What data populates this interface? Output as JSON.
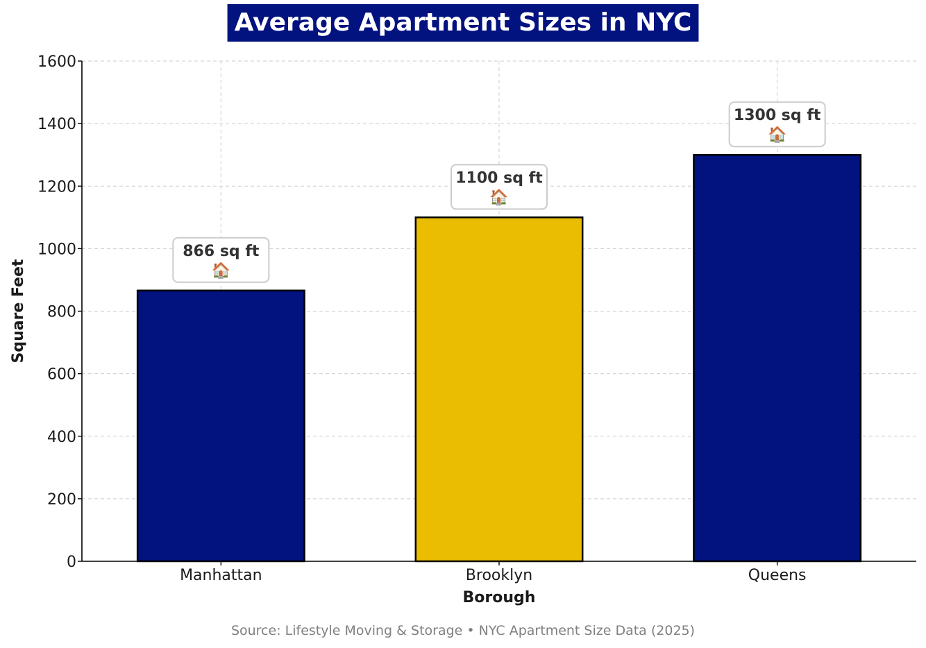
{
  "chart_data": {
    "type": "bar",
    "title": "Average Apartment Sizes in NYC",
    "xlabel": "Borough",
    "ylabel": "Square Feet",
    "categories": [
      "Manhattan",
      "Brooklyn",
      "Queens"
    ],
    "values": [
      866,
      1100,
      1300
    ],
    "data_labels": [
      "866 sq ft",
      "1100 sq ft",
      "1300 sq ft"
    ],
    "label_icon": "house-icon",
    "label_icon_glyph": "🏠",
    "bar_colors": [
      "#02127f",
      "#ebbd02",
      "#02127f"
    ],
    "ylim": [
      0,
      1600
    ],
    "yticks": [
      0,
      200,
      400,
      600,
      800,
      1000,
      1200,
      1400,
      1600
    ],
    "grid": true,
    "legend": "none",
    "source": "Source: Lifestyle Moving & Storage • NYC Apartment Size Data (2025)"
  },
  "colors": {
    "accent_navy": "#02127f",
    "accent_gold": "#ebbd02",
    "title_text": "#ffffff",
    "source_text": "#808080"
  }
}
